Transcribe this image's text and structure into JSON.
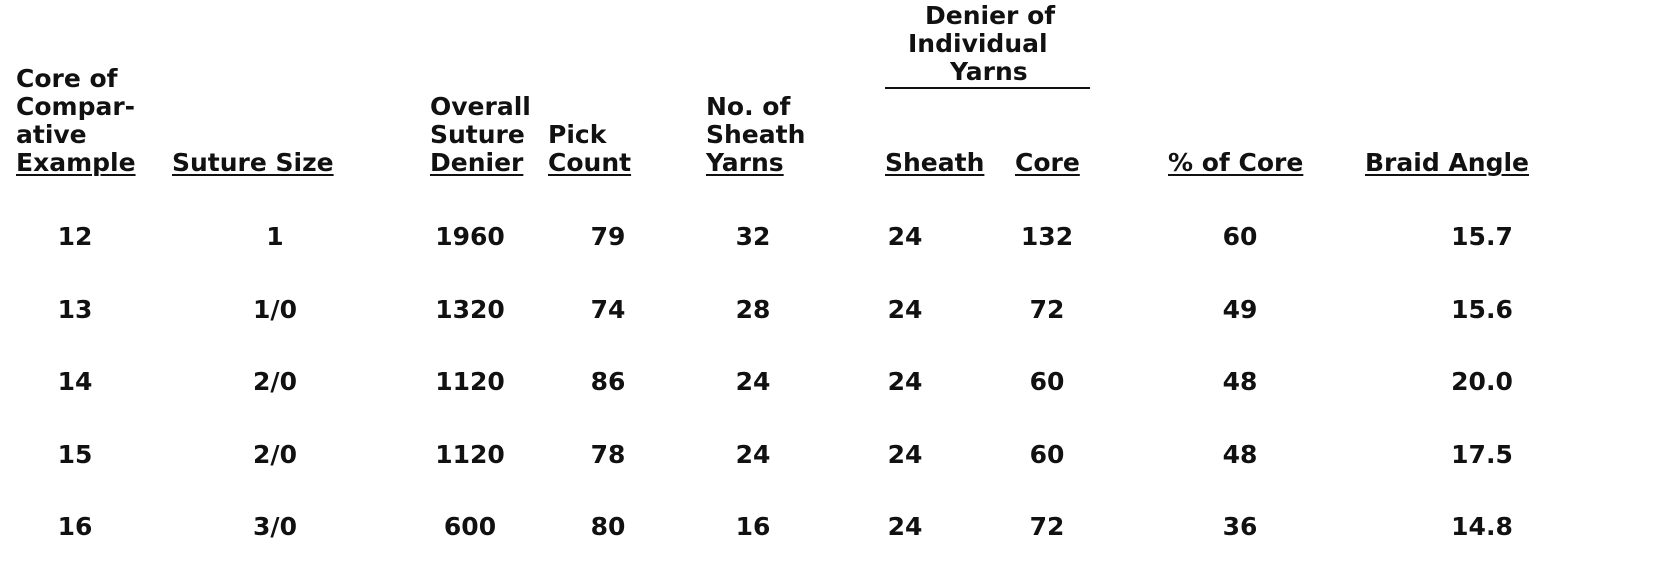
{
  "table": {
    "group_header": {
      "line1": "Denier of",
      "line2": "Individual",
      "line3": "Yarns"
    },
    "headers": [
      {
        "lines": [
          "Core of",
          "Compar-",
          "ative"
        ],
        "underlined": "Example"
      },
      {
        "lines": [],
        "underlined": "Suture Size"
      },
      {
        "lines": [
          "Overall",
          "Suture"
        ],
        "underlined": "Denier"
      },
      {
        "lines": [
          "Pick"
        ],
        "underlined": "Count"
      },
      {
        "lines": [
          "No. of",
          "Sheath"
        ],
        "underlined": "Yarns"
      },
      {
        "lines": [],
        "underlined": "Sheath"
      },
      {
        "lines": [],
        "underlined": "Core"
      },
      {
        "lines": [],
        "underlined": "% of Core"
      },
      {
        "lines": [],
        "underlined": "Braid Angle"
      }
    ],
    "rows": [
      [
        "12",
        "1",
        "1960",
        "79",
        "32",
        "24",
        "132",
        "60",
        "15.7"
      ],
      [
        "13",
        "1/0",
        "1320",
        "74",
        "28",
        "24",
        "72",
        "49",
        "15.6"
      ],
      [
        "14",
        "2/0",
        "1120",
        "86",
        "24",
        "24",
        "60",
        "48",
        "20.0"
      ],
      [
        "15",
        "2/0",
        "1120",
        "78",
        "24",
        "24",
        "60",
        "48",
        "17.5"
      ],
      [
        "16",
        "3/0",
        "600",
        "80",
        "16",
        "24",
        "72",
        "36",
        "14.8"
      ]
    ]
  }
}
